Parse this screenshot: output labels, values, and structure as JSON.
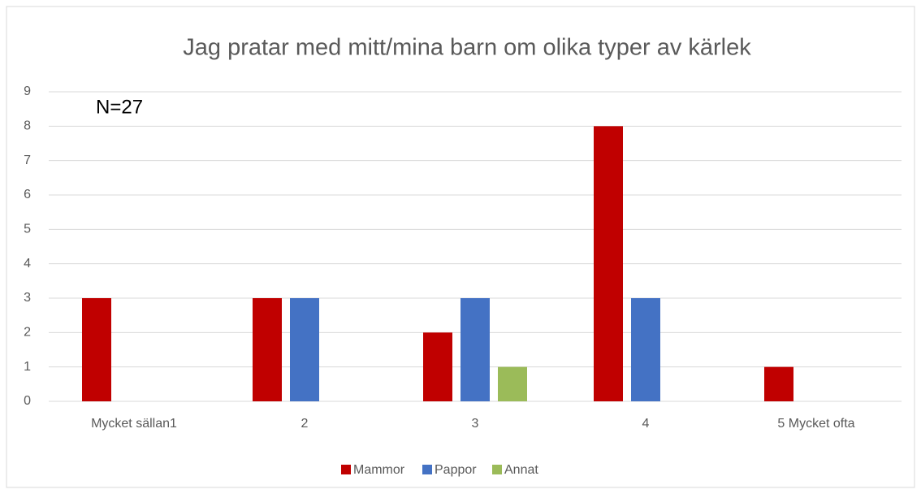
{
  "chart_data": {
    "type": "bar",
    "title": "Jag pratar med mitt/mina barn om olika typer av kärlek",
    "annotation": "N=27",
    "categories": [
      "Mycket sällan1",
      "2",
      "3",
      "4",
      "5 Mycket ofta"
    ],
    "series": [
      {
        "name": "Mammor",
        "color": "#c00000",
        "values": [
          3,
          3,
          2,
          8,
          1
        ]
      },
      {
        "name": "Pappor",
        "color": "#4472c4",
        "values": [
          0,
          3,
          3,
          3,
          0
        ]
      },
      {
        "name": "Annat",
        "color": "#9bbb59",
        "values": [
          0,
          0,
          1,
          0,
          0
        ]
      }
    ],
    "ylim": [
      0,
      9
    ],
    "yticks": [
      0,
      1,
      2,
      3,
      4,
      5,
      6,
      7,
      8,
      9
    ],
    "grid": true,
    "legend": "bottom"
  }
}
